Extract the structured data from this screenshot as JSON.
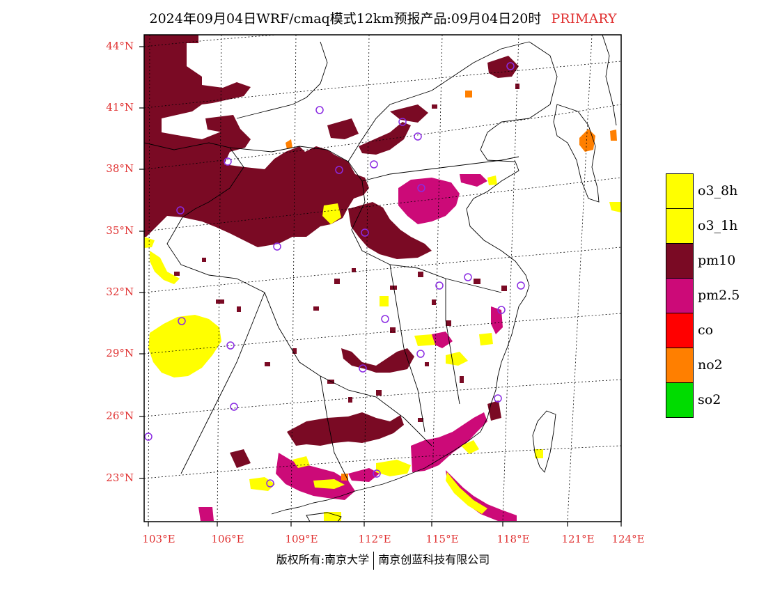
{
  "title": {
    "text": "2024年09月04日WRF/cmaq模式12km预报产品:09月04日20时",
    "tag": "PRIMARY"
  },
  "axes": {
    "lat_labels": [
      "44°N",
      "41°N",
      "38°N",
      "35°N",
      "32°N",
      "29°N",
      "26°N",
      "23°N"
    ],
    "lon_labels": [
      "103°E",
      "106°E",
      "109°E",
      "112°E",
      "115°E",
      "118°E",
      "121°E",
      "124°E"
    ]
  },
  "legend": [
    {
      "label": "o3_8h",
      "color": "#ffff00"
    },
    {
      "label": "o3_1h",
      "color": "#ffff00"
    },
    {
      "label": "pm10",
      "color": "#7a0a24"
    },
    {
      "label": "pm2.5",
      "color": "#cc0a78"
    },
    {
      "label": "co",
      "color": "#ff0000"
    },
    {
      "label": "no2",
      "color": "#ff7f00"
    },
    {
      "label": "so2",
      "color": "#00dc00"
    }
  ],
  "footer": {
    "left": "版权所有:南京大学",
    "right": "南京创蓝科技有限公司"
  },
  "colors": {
    "axis_label": "#e03030",
    "station_marker": "#8a2be2",
    "boundary": "#000000"
  }
}
